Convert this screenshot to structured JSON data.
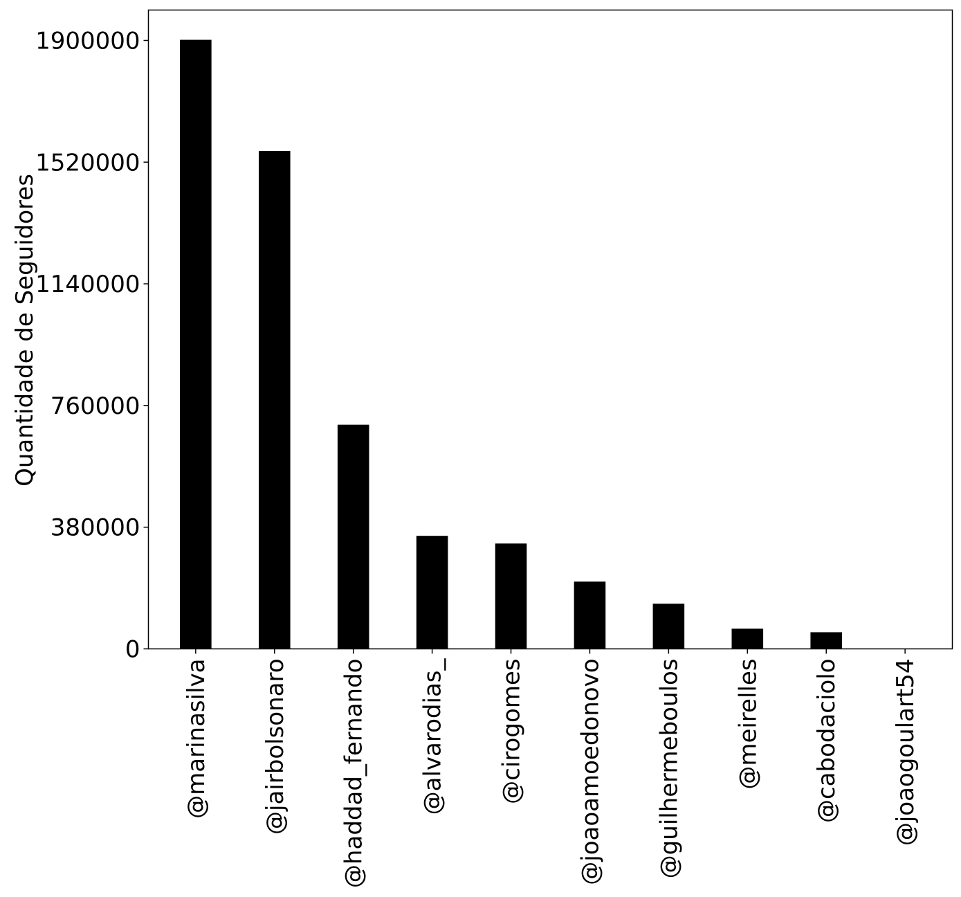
{
  "chart_data": {
    "type": "bar",
    "title": "",
    "xlabel": "",
    "ylabel": "Quantidade de Seguidores",
    "categories": [
      "@marinasilva",
      "@jairbolsonaro",
      "@haddad_fernando",
      "@alvarodias_",
      "@cirogomes",
      "@joaoamoedonovo",
      "@guilhermeboulos",
      "@meirelles",
      "@cabodaciolo",
      "@joaogoulart54"
    ],
    "values": [
      1902000,
      1555000,
      700000,
      353000,
      329000,
      210000,
      141000,
      63000,
      52000,
      1000
    ],
    "yticks": [
      0,
      380000,
      760000,
      1140000,
      1520000,
      1900000
    ],
    "ylim": [
      0,
      1995000
    ],
    "grid": false,
    "bar_color": "#000000"
  }
}
